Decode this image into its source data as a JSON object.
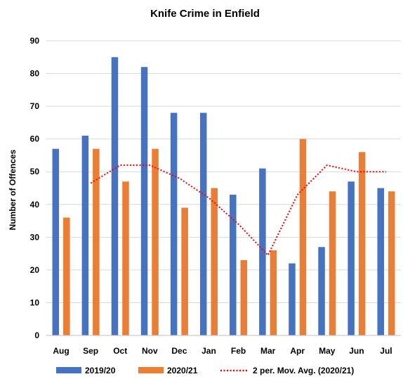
{
  "chart_data": {
    "type": "bar",
    "title": "Knife Crime in Enfield",
    "xlabel": "",
    "ylabel": "Number of Offences",
    "ylim": [
      0,
      90
    ],
    "yticks": [
      0,
      10,
      20,
      30,
      40,
      50,
      60,
      70,
      80,
      90
    ],
    "grid": true,
    "legend_position": "bottom",
    "categories": [
      "Aug",
      "Sep",
      "Oct",
      "Nov",
      "Dec",
      "Jan",
      "Feb",
      "Mar",
      "Apr",
      "May",
      "Jun",
      "Jul"
    ],
    "series": [
      {
        "name": "2019/20",
        "type": "bar",
        "color": "#4472C4",
        "values": [
          57,
          61,
          85,
          82,
          68,
          68,
          43,
          51,
          22,
          27,
          47,
          45
        ]
      },
      {
        "name": "2020/21",
        "type": "bar",
        "color": "#ED7D31",
        "values": [
          36,
          57,
          47,
          57,
          39,
          45,
          23,
          26,
          60,
          44,
          56,
          44
        ]
      },
      {
        "name": "2 per. Mov. Avg. (2020/21)",
        "type": "line",
        "style": "dotted",
        "color": "#FF0000",
        "values": [
          null,
          46.5,
          52,
          52,
          48,
          42,
          34,
          24.5,
          43,
          52,
          50,
          50
        ]
      }
    ]
  }
}
